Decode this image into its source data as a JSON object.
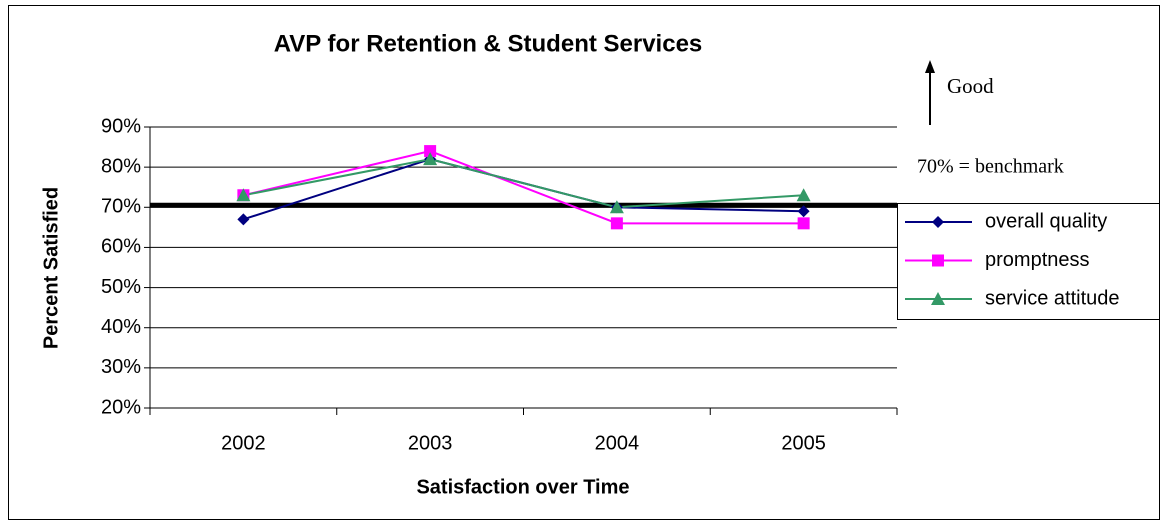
{
  "chart_data": {
    "type": "line",
    "title": "AVP for Retention & Student Services",
    "xlabel": "Satisfaction over Time",
    "ylabel": "Percent Satisfied",
    "categories": [
      "2002",
      "2003",
      "2004",
      "2005"
    ],
    "series": [
      {
        "name": "overall quality",
        "color": "#000080",
        "marker": "diamond",
        "values": [
          67,
          82,
          70,
          69
        ]
      },
      {
        "name": "promptness",
        "color": "#ff00ff",
        "marker": "square",
        "values": [
          73,
          84,
          66,
          66
        ]
      },
      {
        "name": "service attitude",
        "color": "#339966",
        "marker": "triangle",
        "values": [
          73,
          82,
          70,
          73
        ]
      }
    ],
    "ylim": [
      20,
      90
    ],
    "yticks": [
      {
        "value": 20,
        "label": "20%"
      },
      {
        "value": 30,
        "label": "30%"
      },
      {
        "value": 40,
        "label": "40%"
      },
      {
        "value": 50,
        "label": "50%"
      },
      {
        "value": 60,
        "label": "60%"
      },
      {
        "value": 70,
        "label": "70%"
      },
      {
        "value": 80,
        "label": "80%"
      },
      {
        "value": 90,
        "label": "90%"
      }
    ],
    "grid": true,
    "legend": "right",
    "benchmark": {
      "value": 70,
      "label": "70% = benchmark"
    },
    "annotation": "Good"
  }
}
